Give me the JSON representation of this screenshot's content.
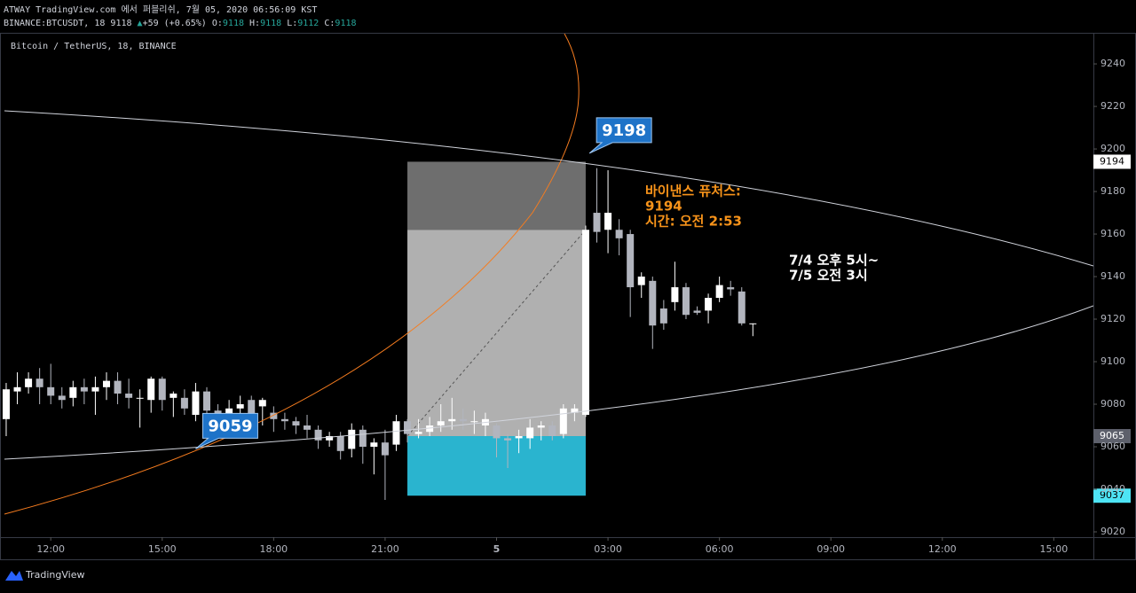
{
  "header": {
    "line1": "ATWAY TradingView.com 에서 퍼블리쉬, 7월 05, 2020 06:56:09 KST",
    "symbol": "BINANCE:BTCUSDT, 18",
    "last": "9118",
    "change": "+59 (+0.65%)",
    "ohlc": [
      {
        "label": "O:",
        "value": "9118"
      },
      {
        "label": "H:",
        "value": "9118"
      },
      {
        "label": "L:",
        "value": "9112"
      },
      {
        "label": "C:",
        "value": "9118"
      }
    ]
  },
  "chart_data": {
    "type": "candlestick",
    "title": "Bitcoin / TetherUS, 18, BINANCE",
    "x": [
      "2020-07-04T10:48",
      "2020-07-04T11:06",
      "2020-07-04T11:24",
      "2020-07-04T11:42",
      "2020-07-04T12:00",
      "2020-07-04T12:18",
      "2020-07-04T12:36",
      "2020-07-04T12:54",
      "2020-07-04T13:12",
      "2020-07-04T13:30",
      "2020-07-04T13:48",
      "2020-07-04T14:06",
      "2020-07-04T14:24",
      "2020-07-04T14:42",
      "2020-07-04T15:00",
      "2020-07-04T15:18",
      "2020-07-04T15:36",
      "2020-07-04T15:54",
      "2020-07-04T16:12",
      "2020-07-04T16:30",
      "2020-07-04T16:48",
      "2020-07-04T17:06",
      "2020-07-04T17:24",
      "2020-07-04T17:42",
      "2020-07-04T18:00",
      "2020-07-04T18:18",
      "2020-07-04T18:36",
      "2020-07-04T18:54",
      "2020-07-04T19:12",
      "2020-07-04T19:30",
      "2020-07-04T19:48",
      "2020-07-04T20:06",
      "2020-07-04T20:24",
      "2020-07-04T20:42",
      "2020-07-04T21:00",
      "2020-07-04T21:18",
      "2020-07-04T21:36",
      "2020-07-04T21:54",
      "2020-07-04T22:12",
      "2020-07-04T22:30",
      "2020-07-04T22:48",
      "2020-07-04T23:06",
      "2020-07-04T23:24",
      "2020-07-04T23:42",
      "2020-07-05T00:00",
      "2020-07-05T00:18",
      "2020-07-05T00:36",
      "2020-07-05T00:54",
      "2020-07-05T01:12",
      "2020-07-05T01:30",
      "2020-07-05T01:48",
      "2020-07-05T02:06",
      "2020-07-05T02:24",
      "2020-07-05T02:42",
      "2020-07-05T03:00",
      "2020-07-05T03:18",
      "2020-07-05T03:36",
      "2020-07-05T03:54",
      "2020-07-05T04:12",
      "2020-07-05T04:30",
      "2020-07-05T04:48",
      "2020-07-05T05:06",
      "2020-07-05T05:24",
      "2020-07-05T05:42",
      "2020-07-05T06:00",
      "2020-07-05T06:18",
      "2020-07-05T06:36",
      "2020-07-05T06:54"
    ],
    "open": [
      9073,
      9086,
      9088,
      9092,
      9088,
      9084,
      9083,
      9088,
      9086,
      9088,
      9091,
      9085,
      9083,
      9082,
      9092,
      9083,
      9083,
      9075,
      9086,
      9077,
      9074,
      9078,
      9082,
      9079,
      9076,
      9073,
      9072,
      9070,
      9068,
      9063,
      9065,
      9059,
      9068,
      9060,
      9062,
      9061,
      9072,
      9066,
      9067,
      9070,
      9072,
      9073,
      9072,
      9070,
      9070,
      9064,
      9064,
      9064,
      9069,
      9070,
      9066,
      9076,
      9075,
      9170,
      9162,
      9162,
      9160,
      9136,
      9138,
      9125,
      9128,
      9135,
      9124,
      9124,
      9130,
      9135,
      9133,
      9118
    ],
    "high": [
      9090,
      9095,
      9095,
      9097,
      9099,
      9088,
      9091,
      9092,
      9093,
      9095,
      9095,
      9092,
      9087,
      9093,
      9093,
      9086,
      9087,
      9090,
      9088,
      9080,
      9082,
      9084,
      9084,
      9083,
      9079,
      9076,
      9074,
      9075,
      9070,
      9067,
      9067,
      9071,
      9070,
      9064,
      9068,
      9075,
      9073,
      9073,
      9074,
      9080,
      9083,
      9078,
      9077,
      9076,
      9071,
      9066,
      9068,
      9073,
      9072,
      9072,
      9080,
      9080,
      9164,
      9191,
      9190,
      9167,
      9162,
      9142,
      9140,
      9129,
      9147,
      9137,
      9126,
      9132,
      9140,
      9138,
      9135,
      9118
    ],
    "low": [
      9065,
      9080,
      9085,
      9080,
      9080,
      9078,
      9079,
      9080,
      9075,
      9082,
      9080,
      9078,
      9069,
      9076,
      9077,
      9074,
      9075,
      9072,
      9074,
      9070,
      9068,
      9074,
      9072,
      9070,
      9067,
      9068,
      9066,
      9064,
      9059,
      9060,
      9054,
      9055,
      9052,
      9047,
      9035,
      9058,
      9062,
      9064,
      9065,
      9067,
      9068,
      9068,
      9066,
      9065,
      9055,
      9050,
      9057,
      9059,
      9063,
      9063,
      9064,
      9072,
      9074,
      9156,
      9151,
      9150,
      9121,
      9130,
      9106,
      9115,
      9124,
      9120,
      9122,
      9118,
      9128,
      9131,
      9117,
      9112
    ],
    "close": [
      9087,
      9088,
      9092,
      9088,
      9084,
      9082,
      9088,
      9086,
      9088,
      9091,
      9085,
      9083,
      9083,
      9092,
      9082,
      9085,
      9078,
      9086,
      9077,
      9074,
      9078,
      9080,
      9075,
      9082,
      9073,
      9072,
      9070,
      9068,
      9063,
      9065,
      9058,
      9068,
      9060,
      9062,
      9056,
      9072,
      9066,
      9067,
      9070,
      9072,
      9073,
      9072,
      9072,
      9073,
      9064,
      9063,
      9065,
      9069,
      9070,
      9065,
      9078,
      9078,
      9162,
      9161,
      9170,
      9158,
      9135,
      9140,
      9117,
      9118,
      9135,
      9122,
      9123,
      9130,
      9136,
      9134,
      9118,
      9118
    ],
    "up_color": "#ffffff",
    "down_color": "#b2b5be",
    "xlim": [
      "2020-07-04T10:38",
      "2020-07-05T16:04"
    ],
    "xticks": [
      {
        "value": "2020-07-04T12:00",
        "label": "12:00"
      },
      {
        "value": "2020-07-04T15:00",
        "label": "15:00"
      },
      {
        "value": "2020-07-04T18:00",
        "label": "18:00"
      },
      {
        "value": "2020-07-04T21:00",
        "label": "21:00"
      },
      {
        "value": "2020-07-05T00:00",
        "label": "5"
      },
      {
        "value": "2020-07-05T03:00",
        "label": "03:00"
      },
      {
        "value": "2020-07-05T06:00",
        "label": "06:00"
      },
      {
        "value": "2020-07-05T09:00",
        "label": "09:00"
      },
      {
        "value": "2020-07-05T12:00",
        "label": "12:00"
      },
      {
        "value": "2020-07-05T15:00",
        "label": "15:00"
      }
    ],
    "ylim": [
      9017.5,
      9254.2
    ],
    "yticks": [
      9020,
      9040,
      9060,
      9080,
      9100,
      9120,
      9140,
      9160,
      9180,
      9200,
      9220,
      9240
    ],
    "grid": false,
    "position": {
      "top": 9194,
      "split": 9162,
      "entry": 9065,
      "stop": 9037,
      "start": "2020-07-04T21:36",
      "end": "2020-07-05T02:24"
    },
    "price_labels": [
      {
        "value": 9194,
        "bg": "#ffffff",
        "fg": "#000000"
      },
      {
        "value": 9065,
        "bg": "#5d606b",
        "fg": "#ffffff"
      },
      {
        "value": 9037,
        "bg": "#4ee4f5",
        "fg": "#000000"
      }
    ],
    "callouts": [
      {
        "value": 9198,
        "x": "2020-07-05T02:30"
      },
      {
        "value": 9059,
        "x": "2020-07-04T15:54"
      }
    ],
    "annotations": {
      "orange": [
        "바이낸스 퓨처스:",
        "9194",
        "시간: 오전 2:53"
      ],
      "white": [
        "7/4 오후 5시~",
        "7/5 오전 3시"
      ]
    }
  },
  "footer": {
    "brand": "TradingView"
  }
}
